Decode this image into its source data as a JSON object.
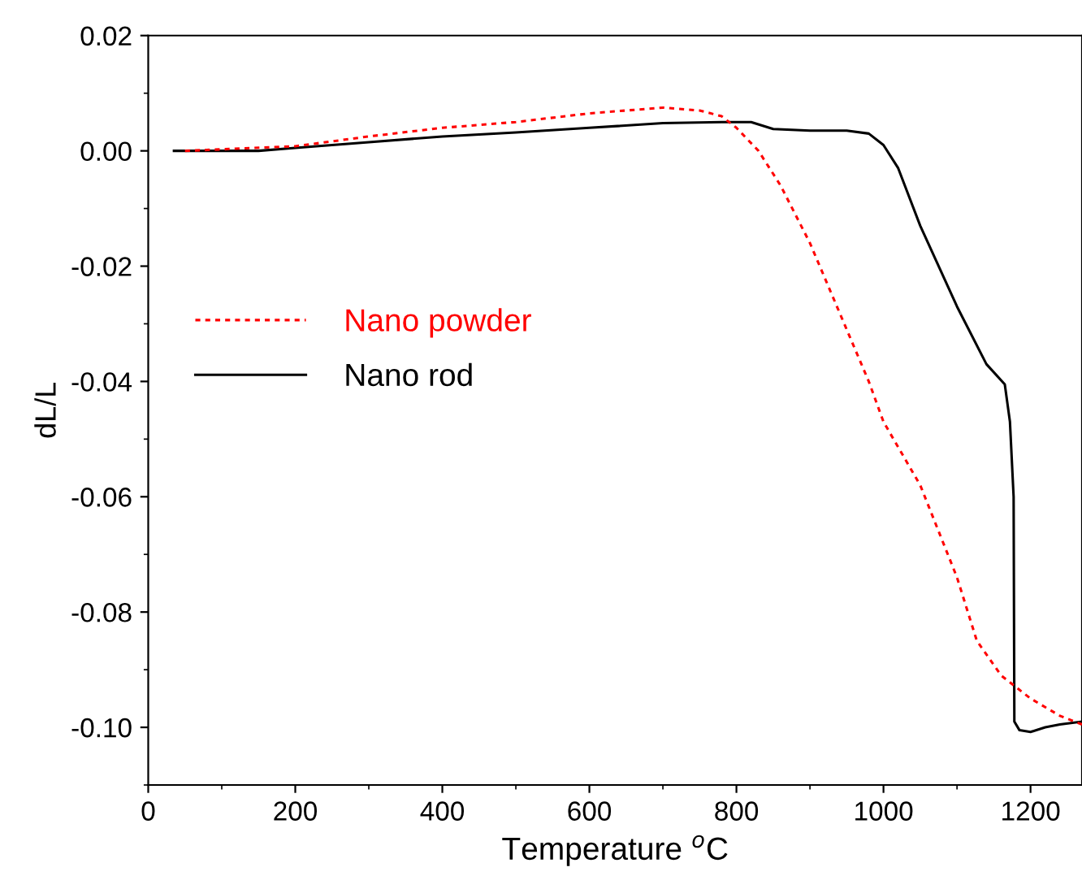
{
  "chart_data": {
    "type": "line",
    "xlabel": "Temperature $^{o}$C",
    "ylabel": "dL/L",
    "xlim": [
      0,
      1270
    ],
    "ylim": [
      -0.11,
      0.02
    ],
    "xticks": [
      0,
      200,
      400,
      600,
      800,
      1000,
      1200
    ],
    "yticks": [
      {
        "value": 0.02,
        "label": "0.02"
      },
      {
        "value": 0,
        "label": "0.00"
      },
      {
        "value": -0.02,
        "label": "-0.02"
      },
      {
        "value": -0.04,
        "label": "-0.04"
      },
      {
        "value": -0.06,
        "label": "-0.06"
      },
      {
        "value": -0.08,
        "label": "-0.08"
      },
      {
        "value": -0.1,
        "label": "-0.10"
      }
    ],
    "grid": false,
    "legend": "left",
    "marker": "none",
    "series": [
      {
        "name": "Nano powder",
        "color": "#ff0000",
        "line_style": "dotted",
        "x": [
          50,
          200,
          300,
          400,
          500,
          600,
          700,
          750,
          780,
          800,
          830,
          860,
          900,
          950,
          980,
          1000,
          1050,
          1100,
          1127,
          1160,
          1200,
          1240,
          1270
        ],
        "values": [
          0,
          0.0008,
          0.0025,
          0.004,
          0.005,
          0.0065,
          0.0075,
          0.007,
          0.006,
          0.004,
          0,
          -0.006,
          -0.016,
          -0.031,
          -0.04,
          -0.047,
          -0.058,
          -0.074,
          -0.085,
          -0.091,
          -0.095,
          -0.098,
          -0.0995
        ]
      },
      {
        "name": "Nano rod",
        "color": "#000000",
        "line_style": "solid",
        "x": [
          35,
          100,
          150,
          200,
          300,
          400,
          500,
          600,
          700,
          780,
          820,
          850,
          900,
          950,
          980,
          1000,
          1020,
          1050,
          1100,
          1140,
          1165,
          1172,
          1177,
          1178,
          1185,
          1200,
          1220,
          1240,
          1270
        ],
        "values": [
          0,
          0,
          0,
          0.0005,
          0.0015,
          0.0025,
          0.0032,
          0.004,
          0.0048,
          0.005,
          0.005,
          0.0038,
          0.0035,
          0.0035,
          0.003,
          0.001,
          -0.003,
          -0.013,
          -0.027,
          -0.037,
          -0.0405,
          -0.047,
          -0.06,
          -0.099,
          -0.1005,
          -0.1008,
          -0.1,
          -0.0995,
          -0.099
        ]
      }
    ]
  }
}
